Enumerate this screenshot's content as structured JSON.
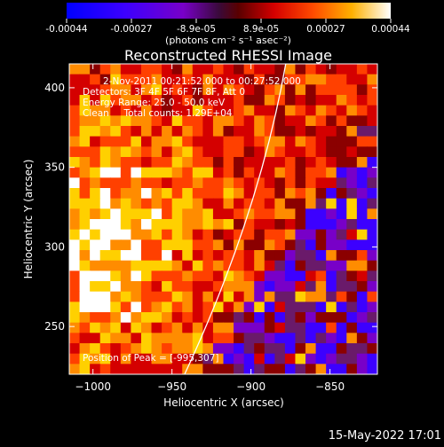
{
  "colors": {
    "background": "#000000",
    "text": "#ffffff",
    "colormap": [
      "#0000ff",
      "#3c00ff",
      "#7800c8",
      "#6a1a6a",
      "#8b0000",
      "#d40000",
      "#ff4000",
      "#ff8c00",
      "#ffd000",
      "#ffffff"
    ]
  },
  "colorbar": {
    "tick_labels": [
      "-0.00044",
      "-0.00027",
      "-8.9e-05",
      "8.9e-05",
      "0.00027",
      "0.00044"
    ],
    "range": [
      -0.00044,
      0.00044
    ],
    "units_label": "(photons cm⁻² s⁻¹ asec⁻²)"
  },
  "chart_data": {
    "type": "heatmap",
    "title": "Reconstructed RHESSI Image",
    "xlabel": "Heliocentric X (arcsec)",
    "ylabel": "Heliocentric Y (arcsec)",
    "xlim": [
      -1015,
      -820
    ],
    "ylim": [
      220,
      415
    ],
    "x_ticks": [
      -1000,
      -950,
      -900,
      -850
    ],
    "y_ticks": [
      250,
      300,
      350,
      400
    ],
    "annotations": [
      "2-Nov-2011 00:21:52.000 to 00:27:52.000",
      "Detectors: 3F 4F 5F 6F 7F 8F, Att 0",
      "Energy Range: 25.0 - 50.0 keV",
      "Clean     Total counts: 1.29E+04"
    ],
    "peak_label": "Position of Peak = [-995,307]",
    "peak_position": [
      -995,
      307
    ],
    "limb": "solar limb arc",
    "grid": false
  },
  "footer": {
    "timestamp": "15-May-2022 17:01"
  }
}
